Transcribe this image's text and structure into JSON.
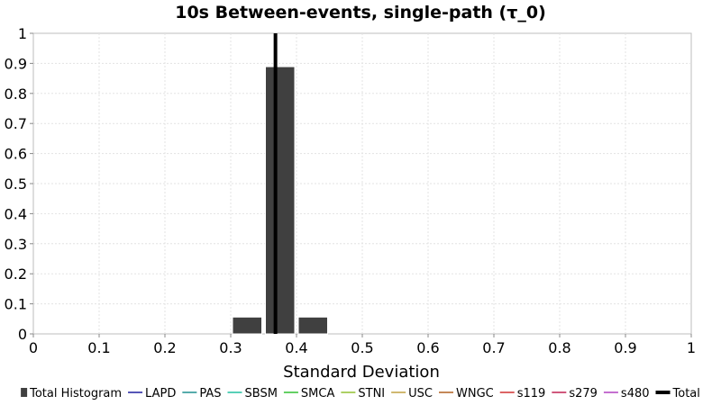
{
  "chart_data": {
    "type": "bar",
    "title": "10s Between-events, single-path (τ_0)",
    "xlabel": "Standard Deviation",
    "ylabel": "",
    "xlim": [
      0,
      1
    ],
    "ylim": [
      0,
      1
    ],
    "x_ticks": [
      "0",
      "0.1",
      "0.2",
      "0.3",
      "0.4",
      "0.5",
      "0.6",
      "0.7",
      "0.8",
      "0.9",
      "1"
    ],
    "y_ticks": [
      "0",
      "0.1",
      "0.2",
      "0.3",
      "0.4",
      "0.5",
      "0.6",
      "0.7",
      "0.8",
      "0.9",
      "1"
    ],
    "grid": true,
    "histogram": {
      "name": "Total Histogram",
      "color": "#404040",
      "bins": [
        {
          "x0": 0.3,
          "x1": 0.35,
          "value": 0.056
        },
        {
          "x0": 0.35,
          "x1": 0.4,
          "value": 0.889
        },
        {
          "x0": 0.4,
          "x1": 0.45,
          "value": 0.056
        }
      ]
    },
    "total_line": {
      "name": "Total",
      "x": 0.368,
      "color": "#000000"
    },
    "legend": [
      {
        "name": "Total Histogram",
        "color": "#404040",
        "marker": "square"
      },
      {
        "name": "LAPD",
        "color": "#1f1f9f",
        "marker": "line"
      },
      {
        "name": "PAS",
        "color": "#1f8f8f",
        "marker": "line"
      },
      {
        "name": "SBSM",
        "color": "#20c0a0",
        "marker": "line"
      },
      {
        "name": "SMCA",
        "color": "#30c030",
        "marker": "line"
      },
      {
        "name": "STNI",
        "color": "#90c030",
        "marker": "line"
      },
      {
        "name": "USC",
        "color": "#c0a040",
        "marker": "line"
      },
      {
        "name": "WNGC",
        "color": "#b06020",
        "marker": "line"
      },
      {
        "name": "s119",
        "color": "#d03030",
        "marker": "line"
      },
      {
        "name": "s279",
        "color": "#c02050",
        "marker": "line"
      },
      {
        "name": "s480",
        "color": "#b040c0",
        "marker": "line"
      },
      {
        "name": "Total",
        "color": "#000000",
        "marker": "thick-line"
      }
    ],
    "legend_placement": "bottom"
  }
}
